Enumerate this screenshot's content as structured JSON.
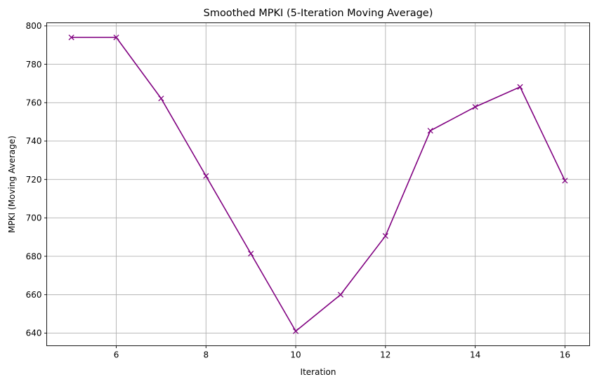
{
  "chart_data": {
    "type": "line",
    "title": "Smoothed MPKI (5-Iteration Moving Average)",
    "xlabel": "Iteration",
    "ylabel": "MPKI (Moving Average)",
    "xlim": [
      4.45,
      16.55
    ],
    "ylim": [
      633.4,
      801.6
    ],
    "xticks": [
      6,
      8,
      10,
      12,
      14,
      16
    ],
    "yticks": [
      640,
      660,
      680,
      700,
      720,
      740,
      760,
      780,
      800
    ],
    "grid": true,
    "marker": "x",
    "series": [
      {
        "color": "#800080",
        "x": [
          5,
          6,
          7,
          8,
          9,
          10,
          11,
          12,
          13,
          14,
          15,
          16
        ],
        "y": [
          794,
          794,
          762.2,
          721.8,
          681.4,
          641,
          660,
          690.6,
          745.4,
          757.8,
          768.2,
          719.4
        ]
      }
    ]
  }
}
